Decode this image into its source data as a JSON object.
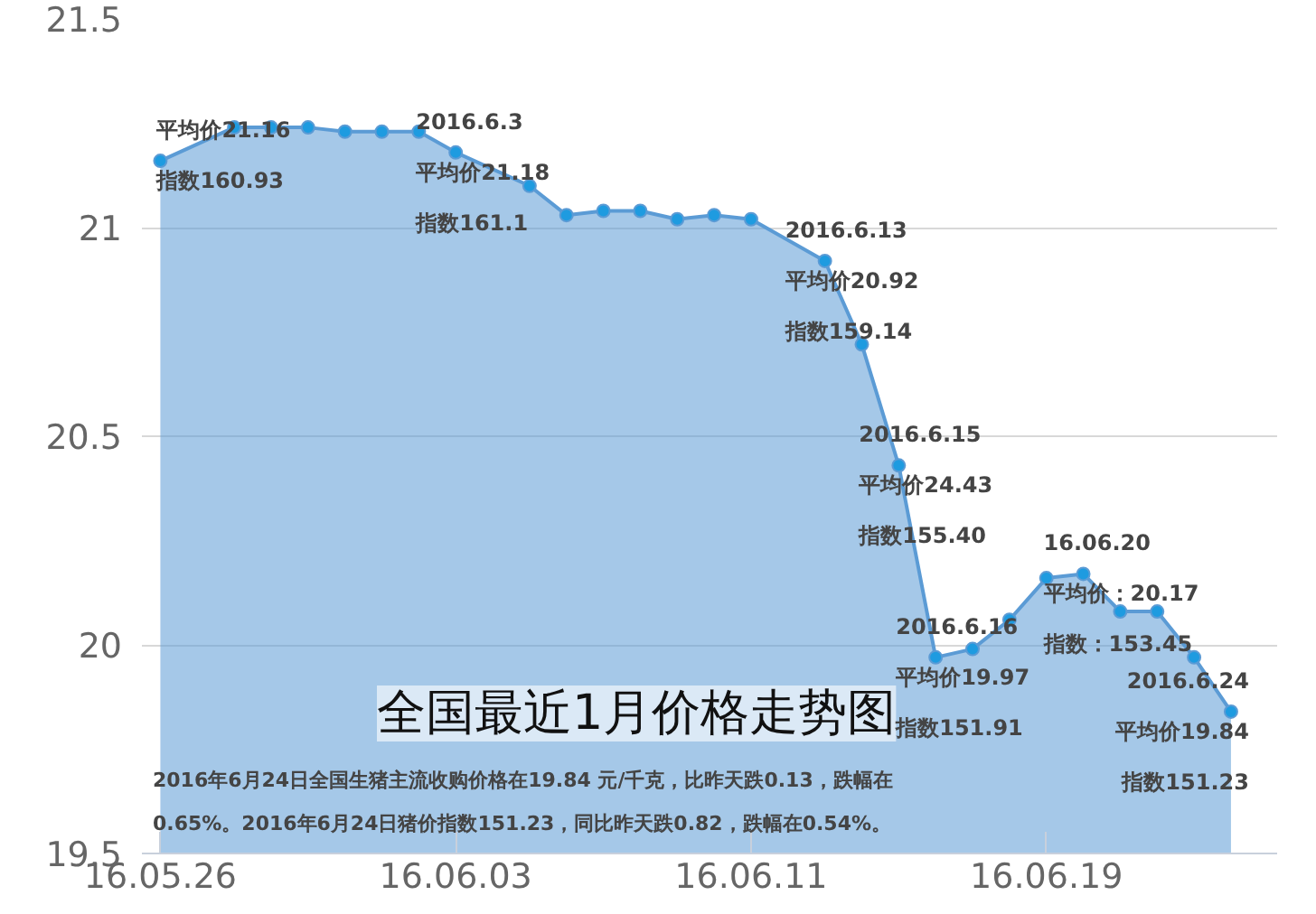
{
  "chart_data": {
    "type": "area",
    "title": "全国最近1月价格走势图",
    "x": [
      "2016-05-26",
      "2016-05-28",
      "2016-05-29",
      "2016-05-30",
      "2016-05-31",
      "2016-06-01",
      "2016-06-02",
      "2016-06-03",
      "2016-06-05",
      "2016-06-06",
      "2016-06-07",
      "2016-06-08",
      "2016-06-09",
      "2016-06-10",
      "2016-06-11",
      "2016-06-13",
      "2016-06-14",
      "2016-06-15",
      "2016-06-16",
      "2016-06-17",
      "2016-06-18",
      "2016-06-19",
      "2016-06-20",
      "2016-06-21",
      "2016-06-22",
      "2016-06-23",
      "2016-06-24"
    ],
    "series": [
      {
        "color": "#5b9bd5",
        "values": [
          21.16,
          21.24,
          21.24,
          21.24,
          21.23,
          21.23,
          21.23,
          21.18,
          21.1,
          21.03,
          21.04,
          21.04,
          21.02,
          21.03,
          21.02,
          20.92,
          20.72,
          20.43,
          19.97,
          19.99,
          20.06,
          20.16,
          20.17,
          20.08,
          20.08,
          19.97,
          19.84
        ]
      }
    ],
    "marker": "circle",
    "ylim": [
      19.5,
      21.5
    ],
    "yticks": [
      19.5,
      20,
      20.5,
      21,
      21.5
    ],
    "xlim": [
      "2016-05-25T12:00",
      "2016-06-25T06:00"
    ],
    "xticks": [
      {
        "value": "2016-05-26",
        "label": "16.05.26"
      },
      {
        "value": "2016-06-03",
        "label": "16.06.03"
      },
      {
        "value": "2016-06-11",
        "label": "16.06.11"
      },
      {
        "value": "2016-06-19",
        "label": "16.06.19"
      }
    ],
    "grid": "y",
    "annotations": [
      {
        "text": "平均价21.16\n指数160.93",
        "x": "2016-05-26",
        "y": 21.16
      },
      {
        "text": "2016.6.3\n平均价21.18\n指数161.1",
        "x": "2016-06-03",
        "y": 21.18
      },
      {
        "text": "2016.6.13\n平均价20.92\n指数159.14",
        "x": "2016-06-13",
        "y": 20.92
      },
      {
        "text": "2016.6.15\n平均价24.43\n指数155.40",
        "x": "2016-06-15",
        "y": 20.43
      },
      {
        "text": "2016.6.16\n平均价19.97\n指数151.91",
        "x": "2016-06-16",
        "y": 19.97
      },
      {
        "text": "16.06.20\n平均价：20.17\n指数：153.45",
        "x": "2016-06-20",
        "y": 20.17
      },
      {
        "text": "2016.6.24\n平均价19.84\n指数151.23",
        "x": "2016-06-24",
        "y": 19.84
      },
      "2016年6月24日全国生猪主流收购价格在19.84 元/千克，比昨天跌0.13，跌幅在\n0.65%。2016年6月24日猪价指数151.23，同比昨天跌0.82，跌幅在0.54%。"
    ]
  }
}
